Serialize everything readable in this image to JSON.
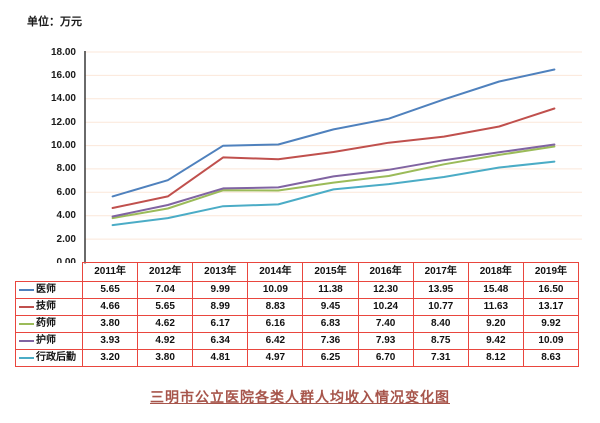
{
  "unit_label": "单位：万元",
  "title": "三明市公立医院各类人群人均收入情况变化图",
  "colors": {
    "gridline": "#fbe7d9",
    "axis": "#2b2b2b",
    "table_border": "#e9463e",
    "title": "#a7554b"
  },
  "chart_data": {
    "type": "line",
    "title": "三明市公立医院各类人群人均收入情况变化图",
    "ylabel": "单位：万元",
    "xlabel": "",
    "categories": [
      "2011年",
      "2012年",
      "2013年",
      "2014年",
      "2015年",
      "2016年",
      "2017年",
      "2018年",
      "2019年"
    ],
    "series": [
      {
        "name": "医师",
        "color": "#4f81bd",
        "values": [
          5.65,
          7.04,
          9.99,
          10.09,
          11.38,
          12.3,
          13.95,
          15.48,
          16.5
        ]
      },
      {
        "name": "技师",
        "color": "#c0504d",
        "values": [
          4.66,
          5.65,
          8.99,
          8.83,
          9.45,
          10.24,
          10.77,
          11.63,
          13.17
        ]
      },
      {
        "name": "药师",
        "color": "#9bbb59",
        "values": [
          3.8,
          4.62,
          6.17,
          6.16,
          6.83,
          7.4,
          8.4,
          9.2,
          9.92
        ]
      },
      {
        "name": "护师",
        "color": "#8064a2",
        "values": [
          3.93,
          4.92,
          6.34,
          6.42,
          7.36,
          7.93,
          8.75,
          9.42,
          10.09
        ]
      },
      {
        "name": "行政后勤",
        "color": "#4bacc6",
        "values": [
          3.2,
          3.8,
          4.81,
          4.97,
          6.25,
          6.7,
          7.31,
          8.12,
          8.63
        ]
      }
    ],
    "ylim": [
      0,
      18
    ],
    "y_tick_step": 2,
    "y_tick_labels": [
      "0.00",
      "2.00",
      "4.00",
      "6.00",
      "8.00",
      "10.00",
      "12.00",
      "14.00",
      "16.00",
      "18.00"
    ],
    "grid": true,
    "legend_position": "table-left-column"
  }
}
